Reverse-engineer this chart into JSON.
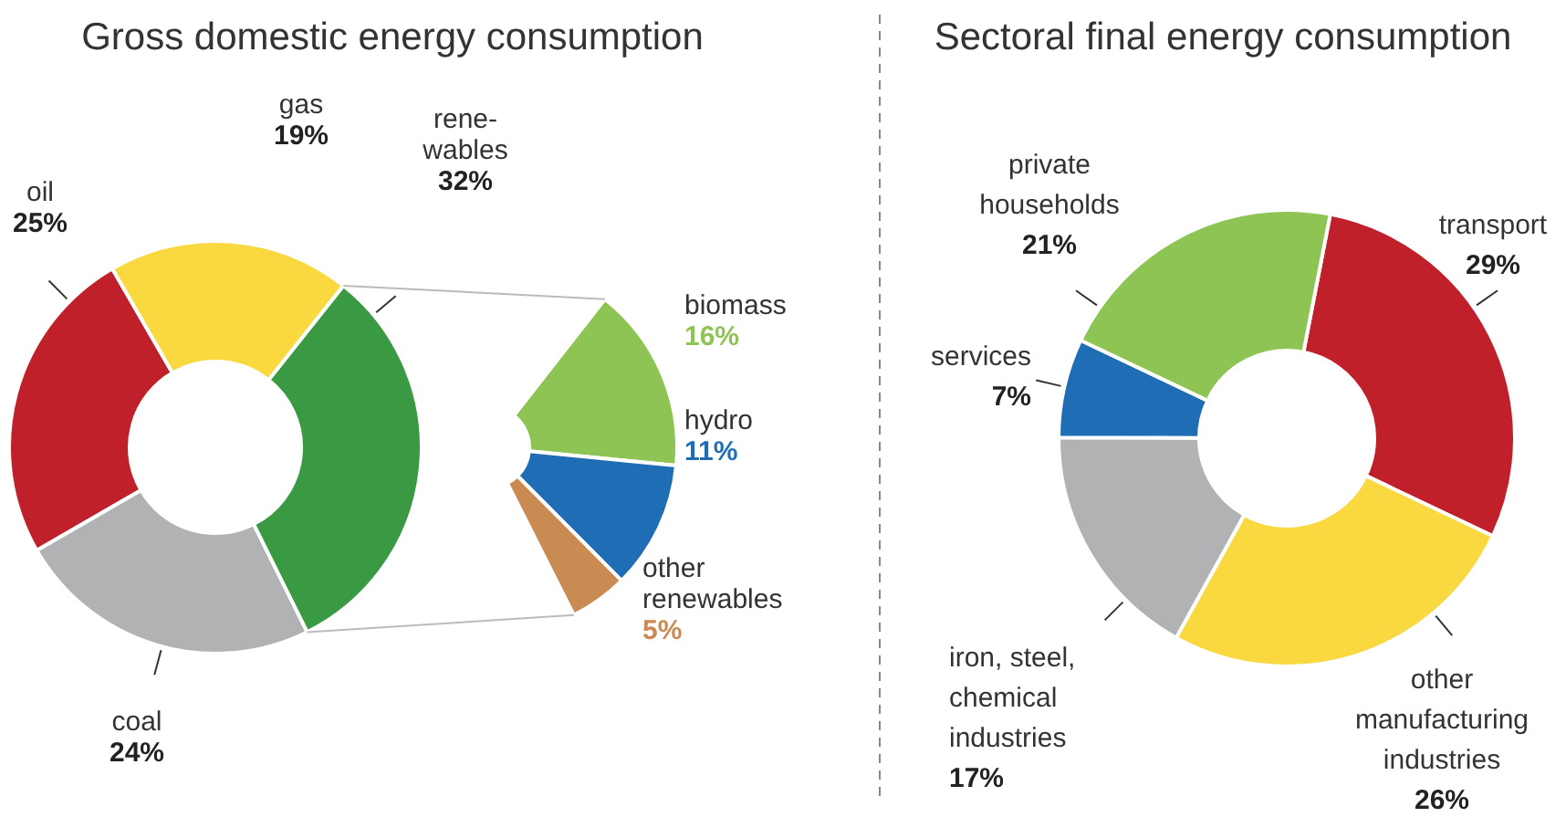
{
  "chart_data": [
    {
      "type": "donut",
      "title": "Gross domestic energy consumption",
      "categories": [
        "oil",
        "gas",
        "rene-\nwables",
        "coal"
      ],
      "values": [
        25,
        19,
        32,
        24
      ],
      "colors": [
        "#c0202a",
        "#f9d93f",
        "#3a9a44",
        "#b1b2b4"
      ],
      "value_labels": [
        "25%",
        "19%",
        "32%",
        "24%"
      ]
    },
    {
      "type": "donut",
      "categories": [
        "biomass",
        "hydro",
        "other\nrenewables"
      ],
      "values": [
        16,
        11,
        5
      ],
      "colors": [
        "#8dc453",
        "#1f6db5",
        "#c98b52"
      ],
      "value_labels": [
        "16%",
        "11%",
        "5%"
      ]
    },
    {
      "type": "donut",
      "title": "Sectoral final energy consumption",
      "categories": [
        "transport",
        "other\nmanufacturing\nindustries",
        "iron, steel,\nchemical\nindustries",
        "services",
        "private\nhouseholds"
      ],
      "values": [
        29,
        26,
        17,
        7,
        21
      ],
      "colors": [
        "#c0202a",
        "#f9d93f",
        "#b1b2b4",
        "#1f6db5",
        "#8dc453"
      ],
      "value_labels": [
        "29%",
        "26%",
        "17%",
        "7%",
        "21%"
      ]
    }
  ]
}
